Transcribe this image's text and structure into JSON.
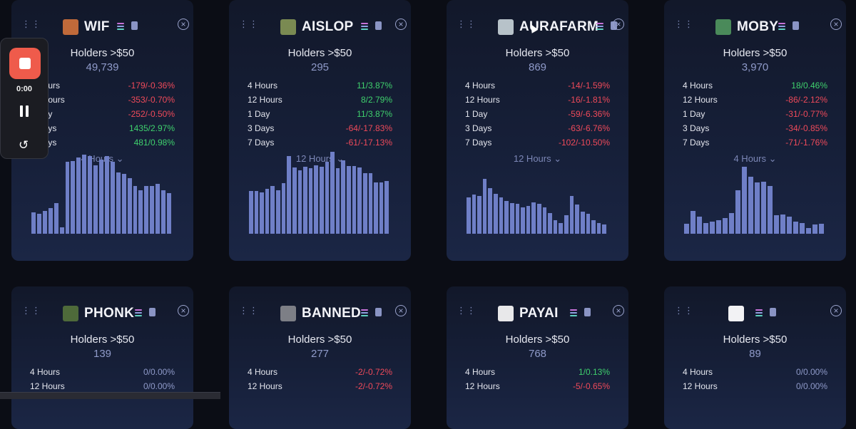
{
  "cards": [
    {
      "token": "WIF",
      "logo_color": "#c06a3a",
      "label": "Holders >$50",
      "value": "49,739",
      "rows": [
        {
          "period": "4 Hours",
          "change": "-179/-0.36%",
          "trend": "neg"
        },
        {
          "period": "12 Hours",
          "change": "-353/-0.70%",
          "trend": "neg"
        },
        {
          "period": "1 Day",
          "change": "-252/-0.50%",
          "trend": "neg"
        },
        {
          "period": "3 Days",
          "change": "1435/2.97%",
          "trend": "pos"
        },
        {
          "period": "7 Days",
          "change": "481/0.98%",
          "trend": "pos"
        }
      ],
      "selected_period": "4 Hours",
      "bars": [
        0.26,
        0.24,
        0.28,
        0.31,
        0.37,
        0.08,
        0.87,
        0.88,
        0.92,
        0.96,
        0.94,
        0.83,
        0.9,
        0.94,
        0.87,
        0.74,
        0.72,
        0.67,
        0.58,
        0.53,
        0.58,
        0.58,
        0.6,
        0.53,
        0.49
      ]
    },
    {
      "token": "AISLOP",
      "logo_color": "#7a8a52",
      "label": "Holders >$50",
      "value": "295",
      "rows": [
        {
          "period": "4 Hours",
          "change": "11/3.87%",
          "trend": "pos"
        },
        {
          "period": "12 Hours",
          "change": "8/2.79%",
          "trend": "pos"
        },
        {
          "period": "1 Day",
          "change": "11/3.87%",
          "trend": "pos"
        },
        {
          "period": "3 Days",
          "change": "-64/-17.83%",
          "trend": "neg"
        },
        {
          "period": "7 Days",
          "change": "-61/-17.13%",
          "trend": "neg"
        }
      ],
      "selected_period": "12 Hours",
      "bars": [
        0.52,
        0.52,
        0.5,
        0.54,
        0.58,
        0.53,
        0.61,
        0.94,
        0.8,
        0.77,
        0.81,
        0.79,
        0.83,
        0.81,
        0.87,
        0.99,
        0.79,
        0.89,
        0.82,
        0.82,
        0.8,
        0.73,
        0.73,
        0.62,
        0.62,
        0.64
      ]
    },
    {
      "token": "AURAFARM",
      "logo_color": "#b7c2c9",
      "label": "Holders >$50",
      "value": "869",
      "rows": [
        {
          "period": "4 Hours",
          "change": "-14/-1.59%",
          "trend": "neg"
        },
        {
          "period": "12 Hours",
          "change": "-16/-1.81%",
          "trend": "neg"
        },
        {
          "period": "1 Day",
          "change": "-59/-6.36%",
          "trend": "neg"
        },
        {
          "period": "3 Days",
          "change": "-63/-6.76%",
          "trend": "neg"
        },
        {
          "period": "7 Days",
          "change": "-102/-10.50%",
          "trend": "neg"
        }
      ],
      "selected_period": "12 Hours",
      "bars": [
        0.44,
        0.47,
        0.46,
        0.66,
        0.55,
        0.48,
        0.44,
        0.4,
        0.37,
        0.36,
        0.32,
        0.34,
        0.38,
        0.36,
        0.32,
        0.25,
        0.16,
        0.13,
        0.22,
        0.46,
        0.35,
        0.27,
        0.24,
        0.16,
        0.13,
        0.11
      ]
    },
    {
      "token": "MOBY",
      "logo_color": "#4a8a5a",
      "label": "Holders >$50",
      "value": "3,970",
      "rows": [
        {
          "period": "4 Hours",
          "change": "18/0.46%",
          "trend": "pos"
        },
        {
          "period": "12 Hours",
          "change": "-86/-2.12%",
          "trend": "neg"
        },
        {
          "period": "1 Day",
          "change": "-31/-0.77%",
          "trend": "neg"
        },
        {
          "period": "3 Days",
          "change": "-34/-0.85%",
          "trend": "neg"
        },
        {
          "period": "7 Days",
          "change": "-71/-1.76%",
          "trend": "neg"
        }
      ],
      "selected_period": "4 Hours",
      "bars": [
        0.12,
        0.28,
        0.21,
        0.13,
        0.15,
        0.16,
        0.19,
        0.25,
        0.53,
        0.81,
        0.69,
        0.62,
        0.63,
        0.58,
        0.22,
        0.23,
        0.21,
        0.15,
        0.13,
        0.07,
        0.11,
        0.12
      ]
    },
    {
      "token": "PHONK",
      "logo_color": "#4e6a3a",
      "label": "Holders >$50",
      "value": "139",
      "rows": [
        {
          "period": "4 Hours",
          "change": "0/0.00%",
          "trend": "neu"
        },
        {
          "period": "12 Hours",
          "change": "0/0.00%",
          "trend": "neu"
        }
      ]
    },
    {
      "token": "BANNED",
      "logo_color": "#7d7f86",
      "label": "Holders >$50",
      "value": "277",
      "rows": [
        {
          "period": "4 Hours",
          "change": "-2/-0.72%",
          "trend": "neg"
        },
        {
          "period": "12 Hours",
          "change": "-2/-0.72%",
          "trend": "neg"
        }
      ]
    },
    {
      "token": "PAYAI",
      "logo_color": "#e8e8ea",
      "label": "Holders >$50",
      "value": "768",
      "rows": [
        {
          "period": "4 Hours",
          "change": "1/0.13%",
          "trend": "pos"
        },
        {
          "period": "12 Hours",
          "change": "-5/-0.65%",
          "trend": "neg"
        }
      ]
    },
    {
      "token": "",
      "logo_color": "#f2f2f4",
      "label": "Holders >$50",
      "value": "89",
      "rows": [
        {
          "period": "4 Hours",
          "change": "0/0.00%",
          "trend": "neu"
        },
        {
          "period": "12 Hours",
          "change": "0/0.00%",
          "trend": "neu"
        }
      ]
    }
  ],
  "recorder": {
    "elapsed": "0:00",
    "stop_icon": "stop-icon",
    "pause_icon": "pause-icon",
    "restart_icon": "restart-icon"
  },
  "colors": {
    "positive": "#3fd06d",
    "negative": "#ef4a5a",
    "neutral": "#8f9ac9",
    "bar": "#6f7fc7",
    "record": "#ef5b4b"
  }
}
